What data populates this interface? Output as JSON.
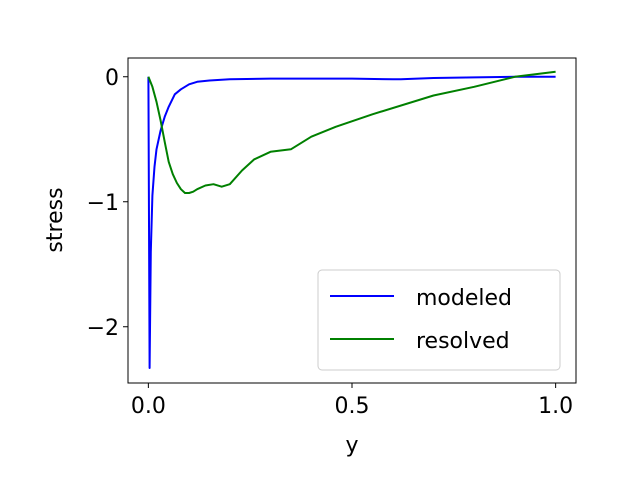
{
  "chart_data": {
    "type": "line",
    "title": "",
    "xlabel": "y",
    "ylabel": "stress",
    "xlim": [
      -0.05,
      1.05
    ],
    "ylim": [
      -2.45,
      0.15
    ],
    "xticks": [
      {
        "value": 0.0,
        "label": "0.0"
      },
      {
        "value": 0.5,
        "label": "0.5"
      },
      {
        "value": 1.0,
        "label": "1.0"
      }
    ],
    "yticks": [
      {
        "value": 0,
        "label": "0"
      },
      {
        "value": -1,
        "label": "−1"
      },
      {
        "value": -2,
        "label": "−2"
      }
    ],
    "grid": false,
    "legend_position": "lower-right",
    "series": [
      {
        "name": "modeled",
        "color": "#0000ff",
        "x": [
          0.0,
          0.003,
          0.006,
          0.01,
          0.015,
          0.02,
          0.03,
          0.04,
          0.05,
          0.065,
          0.08,
          0.1,
          0.12,
          0.15,
          0.2,
          0.3,
          0.4,
          0.5,
          0.6,
          0.62,
          0.7,
          0.8,
          0.9,
          1.0
        ],
        "y": [
          0.0,
          -2.33,
          -1.4,
          -0.95,
          -0.72,
          -0.58,
          -0.43,
          -0.32,
          -0.24,
          -0.14,
          -0.1,
          -0.06,
          -0.04,
          -0.03,
          -0.02,
          -0.015,
          -0.015,
          -0.015,
          -0.02,
          -0.02,
          -0.01,
          -0.005,
          0.0,
          0.0
        ]
      },
      {
        "name": "resolved",
        "color": "#008000",
        "x": [
          0.0,
          0.01,
          0.02,
          0.03,
          0.04,
          0.05,
          0.06,
          0.07,
          0.08,
          0.09,
          0.1,
          0.11,
          0.12,
          0.14,
          0.16,
          0.18,
          0.2,
          0.23,
          0.26,
          0.3,
          0.35,
          0.4,
          0.46,
          0.55,
          0.7,
          0.8,
          0.9,
          1.0
        ],
        "y": [
          0.0,
          -0.08,
          -0.2,
          -0.35,
          -0.52,
          -0.68,
          -0.78,
          -0.85,
          -0.9,
          -0.93,
          -0.93,
          -0.92,
          -0.9,
          -0.87,
          -0.86,
          -0.88,
          -0.86,
          -0.75,
          -0.66,
          -0.6,
          -0.58,
          -0.48,
          -0.4,
          -0.3,
          -0.15,
          -0.08,
          0.0,
          0.04
        ]
      }
    ]
  }
}
